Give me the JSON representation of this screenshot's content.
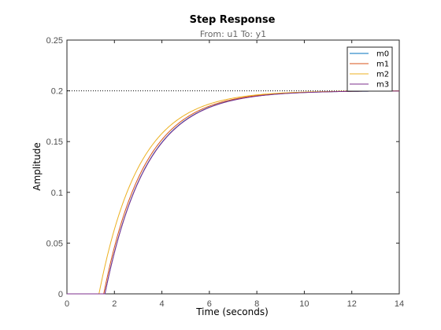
{
  "chart_data": {
    "type": "line",
    "title": "Step Response",
    "subtitle": "From: u1  To: y1",
    "xlabel": "Time (seconds)",
    "ylabel": "Amplitude",
    "xlim": [
      0,
      14
    ],
    "ylim": [
      0,
      0.25
    ],
    "xticks": [
      0,
      2,
      4,
      6,
      8,
      10,
      12,
      14
    ],
    "yticks": [
      0,
      0.05,
      0.1,
      0.15,
      0.2,
      0.25
    ],
    "xtick_labels": [
      "0",
      "2",
      "4",
      "6",
      "8",
      "10",
      "12",
      "14"
    ],
    "ytick_labels": [
      "0",
      "0.05",
      "0.1",
      "0.15",
      "0.2",
      "0.25"
    ],
    "grid": false,
    "legend_position": "top-right",
    "steady_state": 0.2,
    "series": [
      {
        "name": "m0",
        "color": "#0072bd",
        "delay": 1.6,
        "tau": 1.75,
        "gain": 0.2
      },
      {
        "name": "m1",
        "color": "#d95319",
        "delay": 1.55,
        "tau": 1.72,
        "gain": 0.2
      },
      {
        "name": "m2",
        "color": "#edb120",
        "delay": 1.35,
        "tau": 1.7,
        "gain": 0.2
      },
      {
        "name": "m3",
        "color": "#7e2f8e",
        "delay": 1.6,
        "tau": 1.76,
        "gain": 0.2
      }
    ]
  }
}
